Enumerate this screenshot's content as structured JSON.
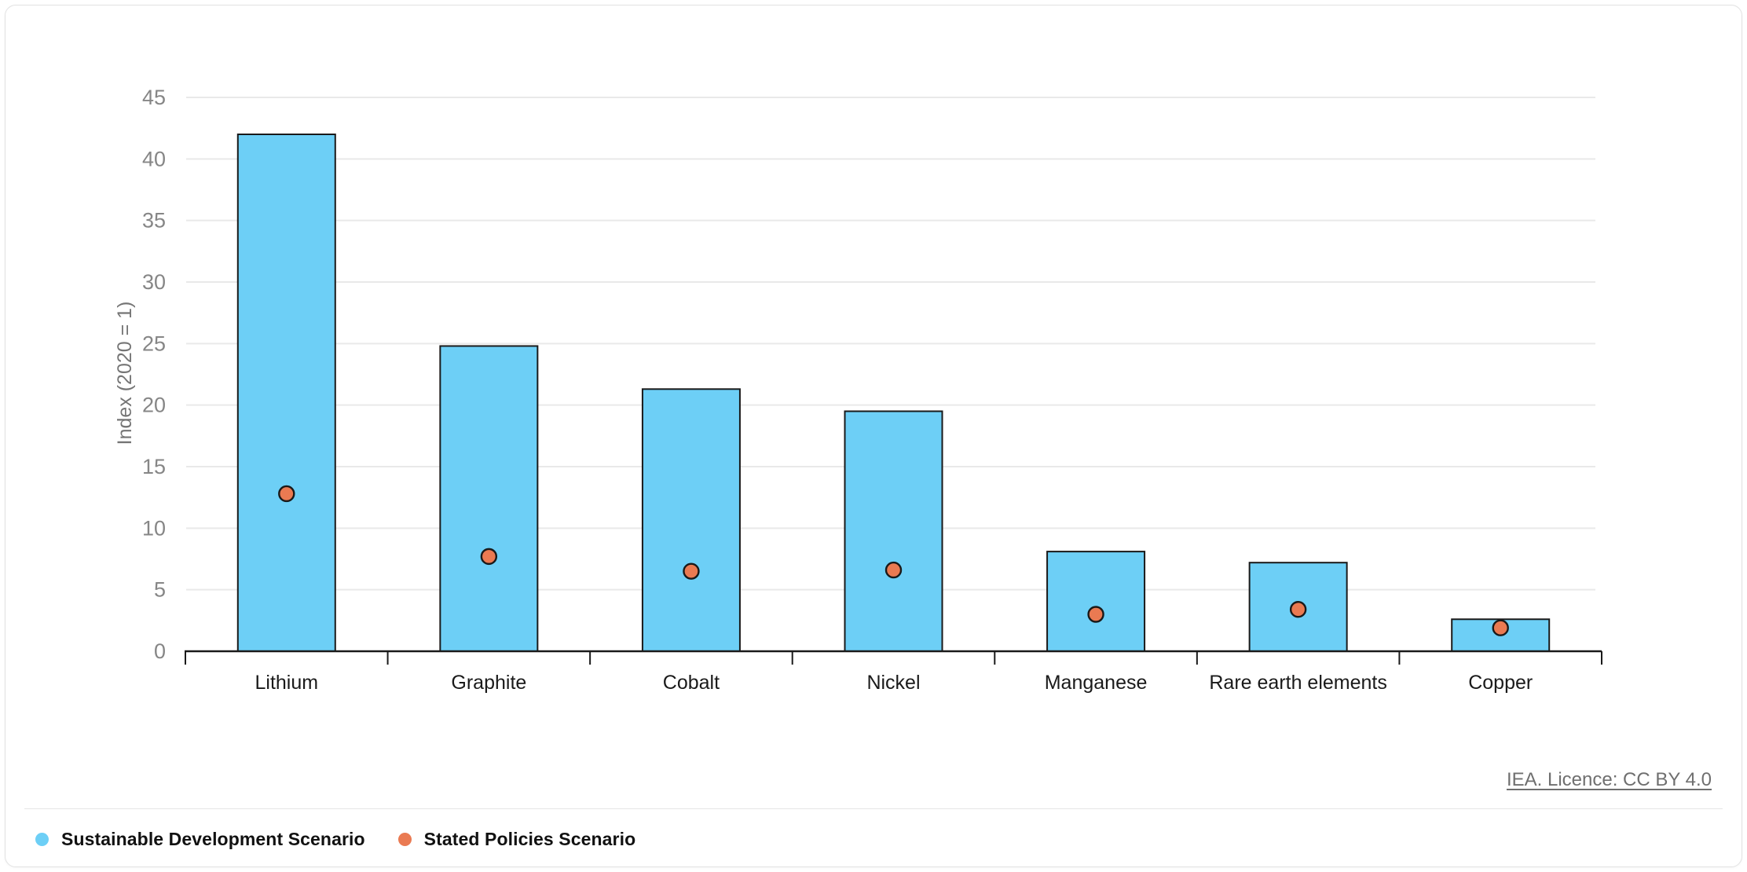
{
  "footer": {
    "license_link": "IEA. Licence: CC BY 4.0"
  },
  "legend": [
    {
      "id": "sustainable-development-scenario",
      "label": "Sustainable Development Scenario",
      "color": "#6dcff6"
    },
    {
      "id": "stated-policies-scenario",
      "label": "Stated Policies Scenario",
      "color": "#ea7a52"
    }
  ],
  "colors": {
    "bar_fill": "#6dcff6",
    "dot_fill": "#ea7a52",
    "outline": "#1a1a1a",
    "gridline": "#e9e9e9",
    "tick_label": "#868686"
  },
  "chart_data": {
    "type": "bar",
    "categories": [
      "Lithium",
      "Graphite",
      "Cobalt",
      "Nickel",
      "Manganese",
      "Rare earth elements",
      "Copper"
    ],
    "series": [
      {
        "name": "Sustainable Development Scenario",
        "type": "bar",
        "color": "#6dcff6",
        "values": [
          42.0,
          24.8,
          21.3,
          19.5,
          8.1,
          7.2,
          2.6
        ]
      },
      {
        "name": "Stated Policies Scenario",
        "type": "scatter",
        "color": "#ea7a52",
        "values": [
          12.8,
          7.7,
          6.5,
          6.6,
          3.0,
          3.4,
          1.9
        ]
      }
    ],
    "title": "",
    "xlabel": "",
    "ylabel": "Index (2020 = 1)",
    "ylim": [
      0,
      45
    ],
    "yticks": [
      0,
      5,
      10,
      15,
      20,
      25,
      30,
      35,
      40,
      45
    ],
    "grid": true,
    "legend_position": "bottom-left"
  }
}
